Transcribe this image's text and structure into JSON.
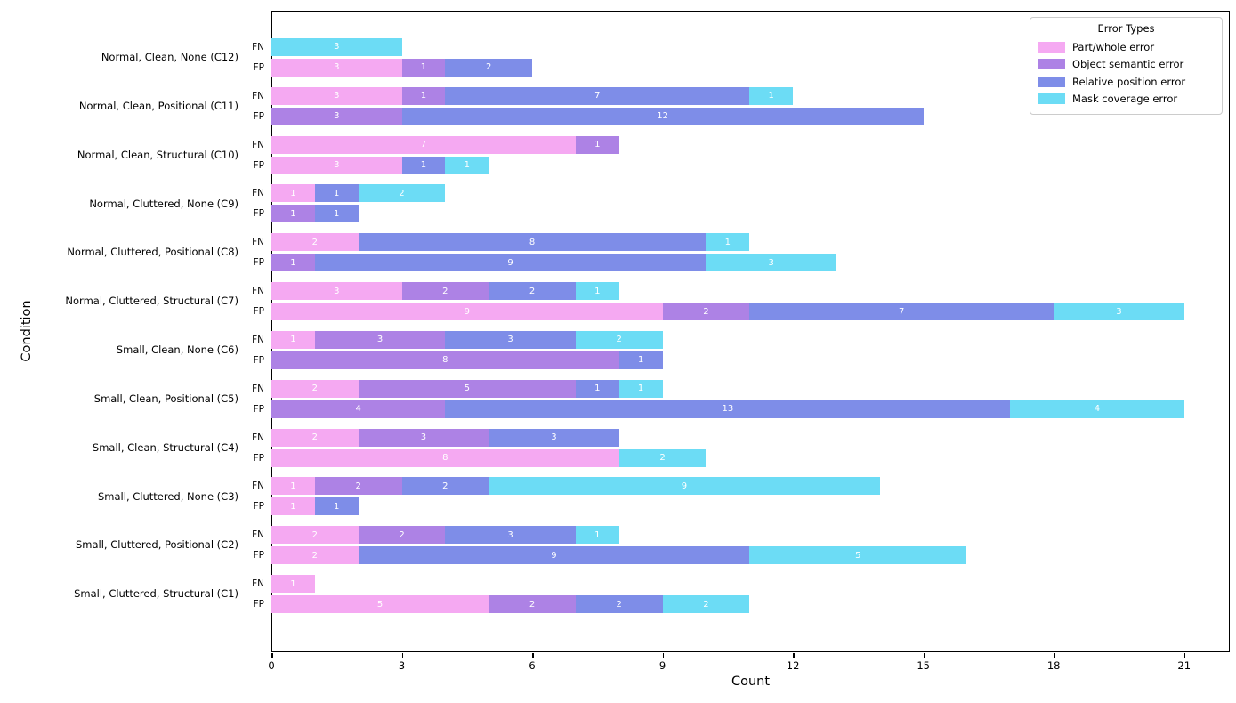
{
  "chart_data": {
    "type": "bar",
    "orientation": "horizontal",
    "stacked": true,
    "xlabel": "Count",
    "ylabel": "Condition",
    "xlim": [
      0,
      22.05
    ],
    "xticks": [
      0,
      3,
      6,
      9,
      12,
      15,
      18,
      21
    ],
    "grid": false,
    "value_label_color": "#ffffff",
    "axis_color": "#000000",
    "legend": {
      "title": "Error Types",
      "position": "upper-right"
    },
    "series": [
      {
        "name": "Part/whole error",
        "color": "#f5a9f2"
      },
      {
        "name": "Object semantic error",
        "color": "#ad82e5"
      },
      {
        "name": "Relative position error",
        "color": "#7e8de8"
      },
      {
        "name": "Mask coverage error",
        "color": "#6cdcf5"
      }
    ],
    "bar_labels": [
      "FN",
      "FP"
    ],
    "rows": [
      {
        "condition": "Normal, Clean, None (C12)",
        "FN": [
          0,
          0,
          0,
          3
        ],
        "FP": [
          3,
          1,
          2,
          0
        ]
      },
      {
        "condition": "Normal, Clean, Positional (C11)",
        "FN": [
          3,
          1,
          7,
          1
        ],
        "FP": [
          0,
          3,
          12,
          0
        ]
      },
      {
        "condition": "Normal, Clean, Structural (C10)",
        "FN": [
          7,
          1,
          0,
          0
        ],
        "FP": [
          3,
          0,
          1,
          1
        ]
      },
      {
        "condition": "Normal, Cluttered, None (C9)",
        "FN": [
          1,
          0,
          1,
          2
        ],
        "FP": [
          0,
          1,
          1,
          0
        ]
      },
      {
        "condition": "Normal, Cluttered, Positional (C8)",
        "FN": [
          2,
          0,
          8,
          1
        ],
        "FP": [
          0,
          1,
          9,
          3
        ]
      },
      {
        "condition": "Normal, Cluttered, Structural (C7)",
        "FN": [
          3,
          2,
          2,
          1
        ],
        "FP": [
          9,
          2,
          7,
          3
        ]
      },
      {
        "condition": "Small, Clean, None (C6)",
        "FN": [
          1,
          3,
          3,
          2
        ],
        "FP": [
          0,
          8,
          1,
          0
        ]
      },
      {
        "condition": "Small, Clean, Positional (C5)",
        "FN": [
          2,
          5,
          1,
          1
        ],
        "FP": [
          0,
          4,
          13,
          4
        ]
      },
      {
        "condition": "Small, Clean, Structural (C4)",
        "FN": [
          2,
          3,
          3,
          0
        ],
        "FP": [
          8,
          0,
          0,
          2
        ]
      },
      {
        "condition": "Small, Cluttered, None (C3)",
        "FN": [
          1,
          2,
          2,
          9
        ],
        "FP": [
          1,
          0,
          1,
          0
        ]
      },
      {
        "condition": "Small, Cluttered, Positional (C2)",
        "FN": [
          2,
          2,
          3,
          1
        ],
        "FP": [
          2,
          0,
          9,
          5
        ]
      },
      {
        "condition": "Small, Cluttered, Structural (C1)",
        "FN": [
          1,
          0,
          0,
          0
        ],
        "FP": [
          5,
          2,
          2,
          2
        ]
      }
    ]
  }
}
